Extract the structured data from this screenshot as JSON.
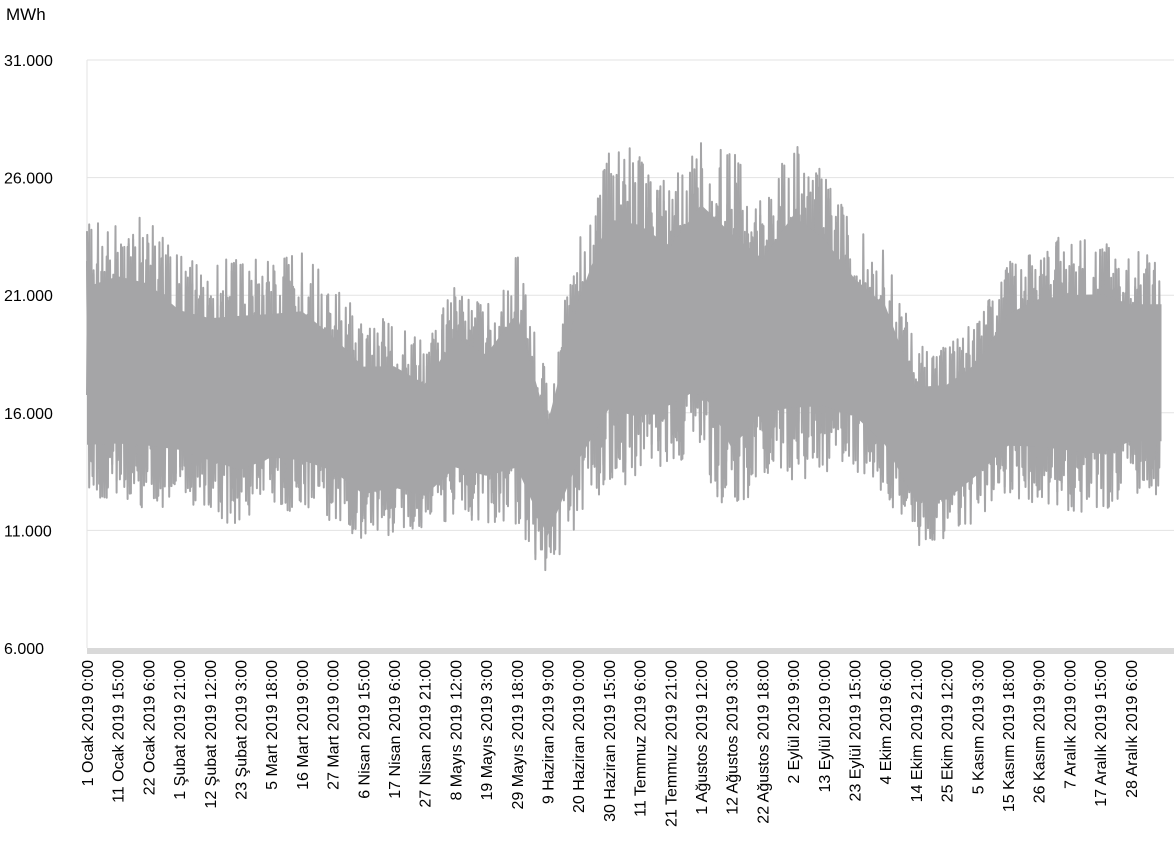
{
  "chart_data": {
    "type": "line",
    "title": "",
    "ylabel": "MWh",
    "xlabel": "",
    "ylim": [
      6000,
      31000
    ],
    "yticks": [
      {
        "value": 31000,
        "label": "31.000"
      },
      {
        "value": 26000,
        "label": "26.000"
      },
      {
        "value": 21000,
        "label": "21.000"
      },
      {
        "value": 16000,
        "label": "16.000"
      },
      {
        "value": 11000,
        "label": "11.000"
      },
      {
        "value": 6000,
        "label": "6.000"
      }
    ],
    "grid": true,
    "x_tick_labels": [
      "1 Ocak 2019 0:00",
      "11 Ocak 2019 15:00",
      "22 Ocak 2019 6:00",
      "1 Şubat 2019 21:00",
      "12 Şubat 2019 12:00",
      "23 Şubat 2019 3:00",
      "5 Mart 2019 18:00",
      "16 Mart 2019 9:00",
      "27 Mart 2019 0:00",
      "6 Nisan 2019 15:00",
      "17 Nisan 2019 6:00",
      "27 Nisan 2019 21:00",
      "8 Mayıs 2019 12:00",
      "19 Mayıs 2019 3:00",
      "29 Mayıs 2019 18:00",
      "9 Haziran 2019 9:00",
      "20 Haziran 2019 0:00",
      "30 Haziran 2019 15:00",
      "11 Temmuz 2019 6:00",
      "21 Temmuz 2019 21:00",
      "1 Ağustos 2019 12:00",
      "12 Ağustos 2019 3:00",
      "22 Ağustos 2019 18:00",
      "2 Eylül 2019 9:00",
      "13 Eylül 2019 0:00",
      "23 Eylül 2019 15:00",
      "4 Ekim 2019 6:00",
      "14 Ekim 2019 21:00",
      "25 Ekim 2019 12:00",
      "5 Kasım 2019 3:00",
      "15 Kasım 2019 18:00",
      "26 Kasım 2019 9:00",
      "7 Aralık 2019 0:00",
      "17 Aralık 2019 15:00",
      "28 Aralık 2019 6:00"
    ],
    "series": [
      {
        "color": "#a5a5a7",
        "envelope_by_tick": [
          {
            "x": "1 Ocak 2019 0:00",
            "min": 12000,
            "max": 24000
          },
          {
            "x": "11 Ocak 2019 15:00",
            "min": 11900,
            "max": 24600
          },
          {
            "x": "22 Ocak 2019 6:00",
            "min": 11900,
            "max": 24200
          },
          {
            "x": "1 Şubat 2019 21:00",
            "min": 12100,
            "max": 22700
          },
          {
            "x": "12 Şubat 2019 12:00",
            "min": 11600,
            "max": 22400
          },
          {
            "x": "23 Şubat 2019 3:00",
            "min": 11000,
            "max": 22700
          },
          {
            "x": "5 Mart 2019 18:00",
            "min": 11700,
            "max": 22600
          },
          {
            "x": "16 Mart 2019 9:00",
            "min": 11500,
            "max": 22800
          },
          {
            "x": "27 Mart 2019 0:00",
            "min": 11300,
            "max": 21500
          },
          {
            "x": "6 Nisan 2019 15:00",
            "min": 10400,
            "max": 20100
          },
          {
            "x": "17 Nisan 2019 6:00",
            "min": 10800,
            "max": 20000
          },
          {
            "x": "27 Nisan 2019 21:00",
            "min": 10600,
            "max": 19100
          },
          {
            "x": "8 Mayıs 2019 12:00",
            "min": 11500,
            "max": 21400
          },
          {
            "x": "19 Mayıs 2019 3:00",
            "min": 11300,
            "max": 20500
          },
          {
            "x": "29 Mayıs 2019 18:00",
            "min": 11100,
            "max": 22800
          },
          {
            "x": "9 Haziran 2019 9:00",
            "min": 8900,
            "max": 17400
          },
          {
            "x": "20 Haziran 2019 0:00",
            "min": 11300,
            "max": 23400
          },
          {
            "x": "30 Haziran 2019 15:00",
            "min": 13000,
            "max": 27400
          },
          {
            "x": "11 Temmuz 2019 6:00",
            "min": 12600,
            "max": 27200
          },
          {
            "x": "21 Temmuz 2019 21:00",
            "min": 13700,
            "max": 25700
          },
          {
            "x": "1 Ağustos 2019 12:00",
            "min": 14000,
            "max": 27900
          },
          {
            "x": "12 Ağustos 2019 3:00",
            "min": 10900,
            "max": 27200
          },
          {
            "x": "22 Ağustos 2019 18:00",
            "min": 13500,
            "max": 25100
          },
          {
            "x": "2 Eylül 2019 9:00",
            "min": 13000,
            "max": 27600
          },
          {
            "x": "13 Eylül 2019 0:00",
            "min": 13500,
            "max": 26200
          },
          {
            "x": "23 Eylül 2019 15:00",
            "min": 13600,
            "max": 24000
          },
          {
            "x": "4 Ekim 2019 6:00",
            "min": 12300,
            "max": 22900
          },
          {
            "x": "14 Ekim 2019 21:00",
            "min": 10300,
            "max": 19000
          },
          {
            "x": "25 Ekim 2019 12:00",
            "min": 10400,
            "max": 19100
          },
          {
            "x": "5 Kasım 2019 3:00",
            "min": 11500,
            "max": 20000
          },
          {
            "x": "15 Kasım 2019 18:00",
            "min": 12400,
            "max": 22400
          },
          {
            "x": "26 Kasım 2019 9:00",
            "min": 12100,
            "max": 23300
          },
          {
            "x": "7 Aralık 2019 0:00",
            "min": 11800,
            "max": 23600
          },
          {
            "x": "17 Aralık 2019 15:00",
            "min": 11600,
            "max": 23700
          },
          {
            "x": "28 Aralık 2019 6:00",
            "min": 12500,
            "max": 22900
          }
        ]
      }
    ]
  }
}
